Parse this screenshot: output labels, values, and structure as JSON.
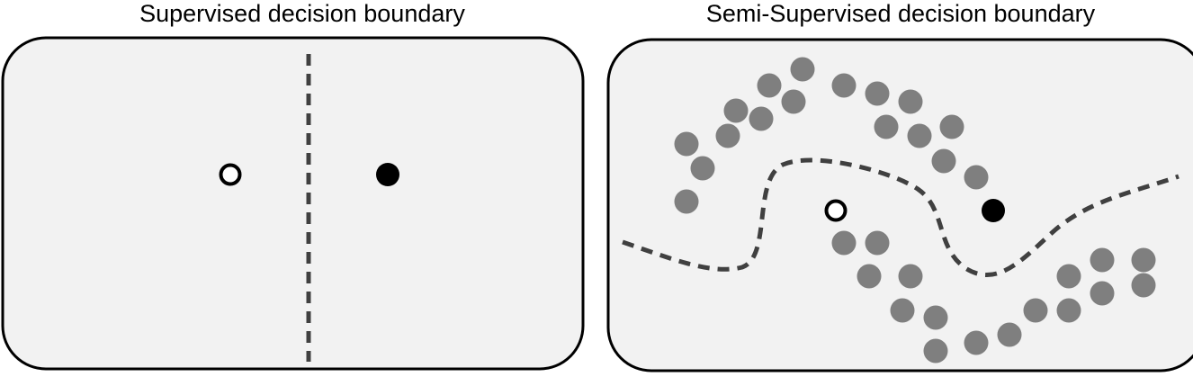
{
  "panels": {
    "supervised": {
      "title": "Supervised decision boundary"
    },
    "semi_supervised": {
      "title": "Semi-Supervised decision boundary"
    }
  },
  "colors": {
    "panel_fill": "#f2f2f2",
    "panel_stroke": "#000000",
    "boundary": "#404040",
    "unlabeled_point": "#7f7f7f",
    "labeled_filled": "#000000",
    "labeled_open_stroke": "#000000",
    "labeled_open_fill": "#ffffff"
  },
  "legend_semantics": {
    "open_circle": "labeled class A",
    "filled_circle": "labeled class B",
    "gray_circle": "unlabeled",
    "dashed_line": "decision boundary"
  }
}
